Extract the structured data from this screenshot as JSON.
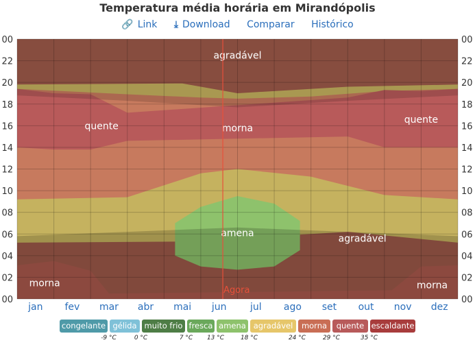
{
  "title": "Temperatura média horária em Mirandópolis",
  "links": [
    {
      "icon": "link-icon",
      "glyph": "🔗",
      "label": "Link"
    },
    {
      "icon": "download-icon",
      "glyph": "⤓",
      "label": "Download"
    },
    {
      "icon": "",
      "glyph": "",
      "label": "Comparar"
    },
    {
      "icon": "",
      "glyph": "",
      "label": "Histórico"
    }
  ],
  "chart_data": {
    "type": "heatmap",
    "x_unit": "month",
    "months": [
      "jan",
      "fev",
      "mar",
      "abr",
      "mai",
      "jun",
      "jul",
      "ago",
      "set",
      "out",
      "nov",
      "dez"
    ],
    "hour_ticks": [
      "00",
      "02",
      "04",
      "06",
      "08",
      "10",
      "12",
      "14",
      "16",
      "18",
      "20",
      "22",
      "00"
    ],
    "ylim": [
      0,
      24
    ],
    "grid": true,
    "now_marker": {
      "label": "Agora",
      "month": 5.6,
      "color": "#e8503a"
    },
    "region_labels": [
      {
        "text": "agradável",
        "month": 6.0,
        "hour": 22.5
      },
      {
        "text": "quente",
        "month": 2.3,
        "hour": 16.0
      },
      {
        "text": "morna",
        "month": 6.0,
        "hour": 15.8
      },
      {
        "text": "quente",
        "month": 11.0,
        "hour": 16.6
      },
      {
        "text": "amena",
        "month": 6.0,
        "hour": 6.1
      },
      {
        "text": "agradável",
        "month": 9.4,
        "hour": 5.6
      },
      {
        "text": "morna",
        "month": 0.75,
        "hour": 1.5
      },
      {
        "text": "morna",
        "month": 11.3,
        "hour": 1.3
      }
    ],
    "bands": [
      {
        "name": "agradável",
        "color": "#c5b25f",
        "boundaries": [
          {
            "month": 0,
            "lower": 5.2,
            "upper": 19.8
          },
          {
            "month": 4.5,
            "lower": 5.3,
            "upper": 19.9
          },
          {
            "month": 6,
            "lower": 5.6,
            "upper": 19.0
          },
          {
            "month": 9,
            "lower": 6.2,
            "upper": 19.6
          },
          {
            "month": 12,
            "lower": 5.2,
            "upper": 19.8
          }
        ]
      },
      {
        "name": "morna",
        "color": "#c77a5e",
        "boundaries": [
          {
            "month": 0,
            "lower": 9.2,
            "upper": 19.4
          },
          {
            "month": 3,
            "lower": 9.4,
            "upper": 18.9
          },
          {
            "month": 5,
            "lower": 11.6,
            "upper": 18.6
          },
          {
            "month": 6,
            "lower": 12.0,
            "upper": 18.5
          },
          {
            "month": 8,
            "lower": 11.3,
            "upper": 18.7
          },
          {
            "month": 10,
            "lower": 9.6,
            "upper": 19.2
          },
          {
            "month": 12,
            "lower": 9.2,
            "upper": 19.4
          }
        ]
      },
      {
        "name": "quente",
        "color": "#b85a5a",
        "boundaries": [
          {
            "month": 0,
            "lower": 14.0,
            "upper": 19.4
          },
          {
            "month": 1,
            "lower": 13.8,
            "upper": 19.0
          },
          {
            "month": 2,
            "lower": 13.8,
            "upper": 18.9
          },
          {
            "month": 3,
            "lower": 14.6,
            "upper": 17.2
          },
          {
            "month": 9,
            "lower": 15.0,
            "upper": 18.6
          },
          {
            "month": 10,
            "lower": 14.0,
            "upper": 19.3
          },
          {
            "month": 11,
            "lower": 14.0,
            "upper": 19.2
          },
          {
            "month": 12,
            "lower": 14.0,
            "upper": 19.4
          }
        ]
      },
      {
        "name": "amena",
        "color": "#8ec26c",
        "boundaries": [
          {
            "month": 4.3,
            "lower": 4.0,
            "upper": 7.0
          },
          {
            "month": 5,
            "lower": 3.0,
            "upper": 8.5
          },
          {
            "month": 6,
            "lower": 2.7,
            "upper": 9.5
          },
          {
            "month": 7,
            "lower": 3.0,
            "upper": 8.8
          },
          {
            "month": 7.7,
            "lower": 4.5,
            "upper": 7.2
          }
        ]
      },
      {
        "name": "morna",
        "color": "#ab5a4e",
        "boundaries": [
          {
            "month": 0,
            "lower": 0,
            "upper": 3.1
          },
          {
            "month": 1,
            "lower": 0,
            "upper": 3.5
          },
          {
            "month": 2,
            "lower": 0,
            "upper": 2.6
          },
          {
            "month": 2.5,
            "lower": 0,
            "upper": 0.5
          },
          {
            "month": 10.2,
            "lower": 0,
            "upper": 0.8
          },
          {
            "month": 11,
            "lower": 0,
            "upper": 3.0
          },
          {
            "month": 12,
            "lower": 0,
            "upper": 3.1
          }
        ]
      }
    ],
    "legend": {
      "items": [
        {
          "label": "congelante",
          "color": "#4f9aa8"
        },
        {
          "label": "gélida",
          "color": "#7fc1d8"
        },
        {
          "label": "muito frio",
          "color": "#4e7d46"
        },
        {
          "label": "fresca",
          "color": "#6aa85b"
        },
        {
          "label": "amena",
          "color": "#8ec26c"
        },
        {
          "label": "agradável",
          "color": "#e6c66a"
        },
        {
          "label": "morna",
          "color": "#c96e55"
        },
        {
          "label": "quente",
          "color": "#b85a5a"
        },
        {
          "label": "escaldante",
          "color": "#a83c3c"
        }
      ],
      "thresholds": [
        "-9 °C",
        "0 °C",
        "7 °C",
        "13 °C",
        "18 °C",
        "24 °C",
        "29 °C",
        "35 °C"
      ]
    }
  }
}
